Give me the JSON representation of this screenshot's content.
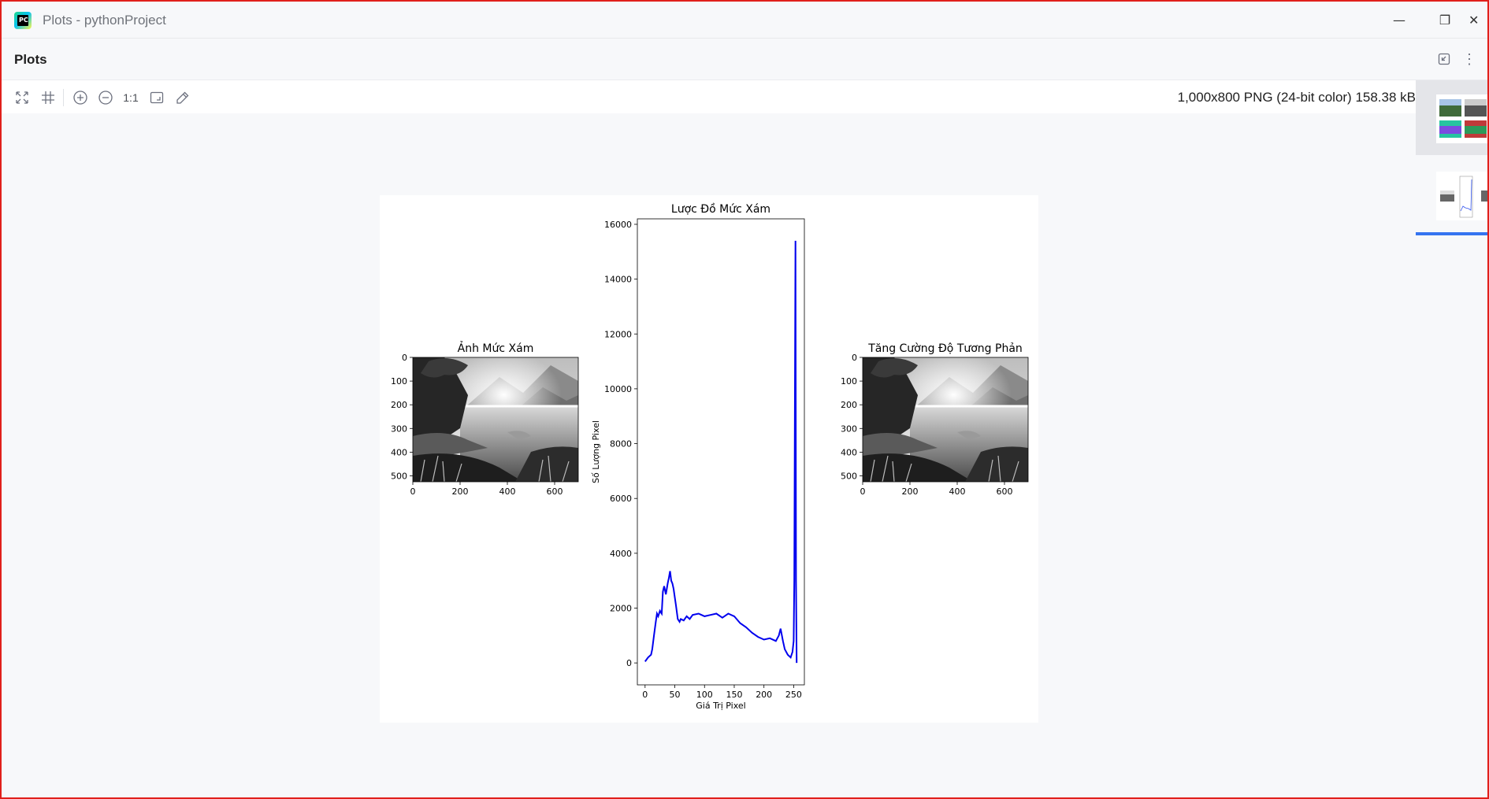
{
  "window": {
    "title": "Plots - pythonProject",
    "app_icon": "pycharm-logo-icon",
    "app_icon_text": "PC",
    "controls": {
      "minimize": "—",
      "restore": "❐",
      "close": "✕"
    }
  },
  "panel": {
    "title": "Plots",
    "header_actions": [
      "restore-layout-icon",
      "more-options-icon"
    ],
    "more_glyph": "⋮"
  },
  "toolbar": {
    "tools": [
      "fit-zoom-icon",
      "grid-icon",
      "zoom-in-icon",
      "zoom-out-icon",
      "actual-size-icon",
      "fit-window-icon",
      "color-picker-icon"
    ],
    "ratio_label": "1:1",
    "image_info": "1,000x800 PNG (24-bit color) 158.38 kB"
  },
  "thumbnails": {
    "count": 2,
    "selected_index": 0,
    "active_index": 1
  },
  "colors": {
    "accent": "#3574f0",
    "histogram_line": "#0000ee",
    "frame_border": "#e0201b"
  },
  "chart_data": [
    {
      "type": "image",
      "title": "Ảnh Mức Xám",
      "xticks": [
        0,
        200,
        400,
        600
      ],
      "yticks": [
        0,
        100,
        200,
        300,
        400,
        500
      ],
      "xlim": [
        0,
        700
      ],
      "ylim": [
        525,
        0
      ]
    },
    {
      "type": "line",
      "title": "Lược Đồ Mức Xám",
      "xlabel": "Giá Trị Pixel",
      "ylabel": "Số Lượng Pixel",
      "xlim": [
        -13,
        268
      ],
      "ylim": [
        -800,
        16200
      ],
      "xticks": [
        0,
        50,
        100,
        150,
        200,
        250
      ],
      "yticks": [
        0,
        2000,
        4000,
        6000,
        8000,
        10000,
        12000,
        14000,
        16000
      ],
      "series": [
        {
          "x": [
            0,
            5,
            10,
            12,
            15,
            18,
            20,
            22,
            25,
            28,
            30,
            32,
            35,
            38,
            40,
            42,
            44,
            46,
            48,
            50,
            52,
            55,
            58,
            60,
            65,
            70,
            75,
            80,
            90,
            100,
            110,
            120,
            130,
            140,
            150,
            160,
            170,
            180,
            190,
            200,
            210,
            220,
            225,
            228,
            232,
            235,
            240,
            245,
            248,
            250,
            251,
            252,
            253,
            254,
            255
          ],
          "y": [
            50,
            200,
            300,
            500,
            1000,
            1500,
            1800,
            1700,
            1900,
            1800,
            2600,
            2800,
            2500,
            2900,
            3100,
            3350,
            3000,
            2900,
            2700,
            2400,
            2100,
            1600,
            1500,
            1600,
            1550,
            1700,
            1600,
            1750,
            1800,
            1700,
            1750,
            1800,
            1650,
            1800,
            1700,
            1450,
            1300,
            1100,
            950,
            850,
            900,
            800,
            1000,
            1250,
            800,
            500,
            300,
            200,
            400,
            800,
            3000,
            9000,
            15400,
            3000,
            0
          ]
        }
      ]
    },
    {
      "type": "image",
      "title": "Tăng Cường Độ Tương Phản",
      "xticks": [
        0,
        200,
        400,
        600
      ],
      "yticks": [
        0,
        100,
        200,
        300,
        400,
        500
      ],
      "xlim": [
        0,
        700
      ],
      "ylim": [
        525,
        0
      ]
    }
  ]
}
